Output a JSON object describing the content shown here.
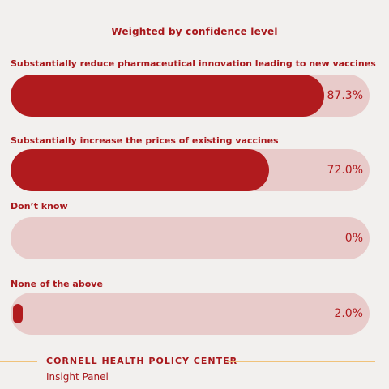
{
  "title": "Weighted by confidence level",
  "chart_data": {
    "type": "bar",
    "orientation": "horizontal",
    "title": "Weighted by confidence level",
    "categories": [
      "Substantially reduce pharmaceutical innovation leading to new vaccines",
      "Substantially increase the prices of existing vaccines",
      "Don’t know",
      "None of the above"
    ],
    "values": [
      87.3,
      72.0,
      0,
      2.0
    ],
    "value_labels": [
      "87.3%",
      "72.0%",
      "0%",
      "2.0%"
    ],
    "unit": "%",
    "xlim": [
      0,
      100
    ],
    "grid": false,
    "legend": "none"
  },
  "colors": {
    "background": "#f2f0ee",
    "bar_fill": "#b11b1e",
    "bar_track": "#e8cbca",
    "text": "#a8181c",
    "footer_line": "#f0c27a"
  },
  "footer": {
    "organization": "CORNELL HEALTH POLICY CENTER",
    "subtitle": "Insight Panel"
  }
}
